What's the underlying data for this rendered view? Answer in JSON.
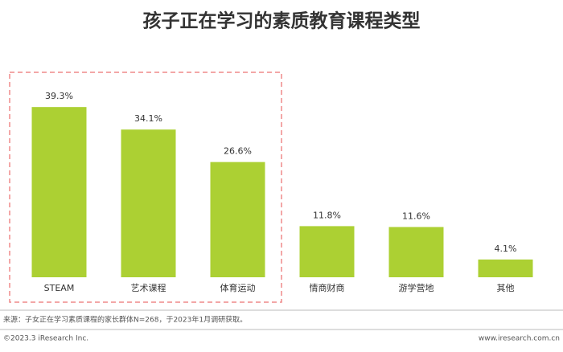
{
  "chart_data": {
    "type": "bar",
    "title": "孩子正在学习的素质教育课程类型",
    "categories": [
      "STEAM",
      "艺术课程",
      "体育运动",
      "情商财商",
      "游学营地",
      "其他"
    ],
    "values": [
      39.3,
      34.1,
      26.6,
      11.8,
      11.6,
      4.1
    ],
    "value_labels": [
      "39.3%",
      "34.1%",
      "26.6%",
      "11.8%",
      "11.6%",
      "4.1%"
    ],
    "color": "#acd033",
    "source": "来源：子女正在学习素质课程的家长群体N=268，于2023年1月调研获取。",
    "copyright": "©2023.3 iResearch Inc.",
    "website": "www.iresearch.com.cn"
  }
}
